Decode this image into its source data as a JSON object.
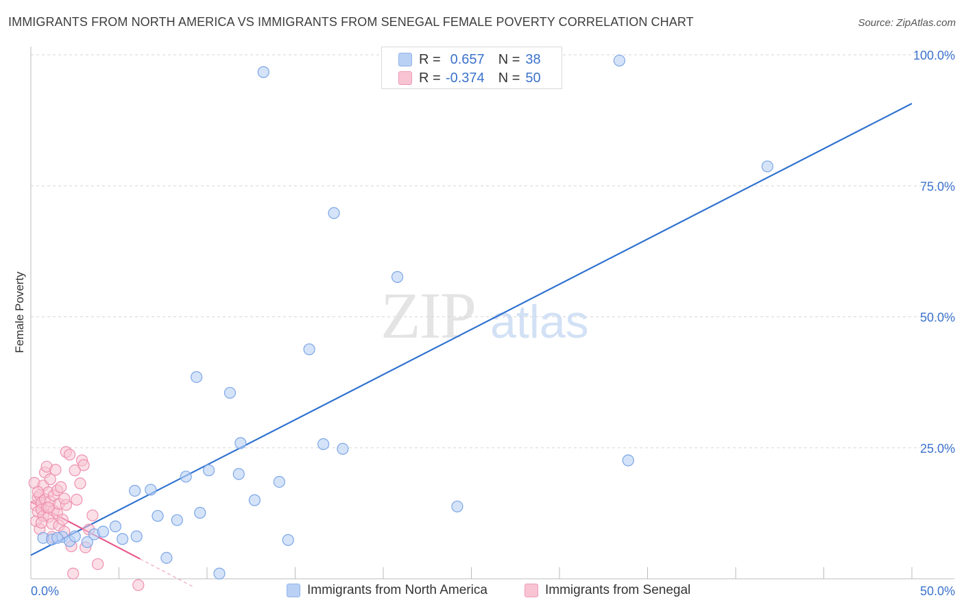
{
  "header": {
    "title": "IMMIGRANTS FROM NORTH AMERICA VS IMMIGRANTS FROM SENEGAL FEMALE POVERTY CORRELATION CHART",
    "source": "Source: ZipAtlas.com"
  },
  "watermark": {
    "zip": "ZIP",
    "atlas": "atlas"
  },
  "stats": {
    "r_label": "R =",
    "n_label": "N =",
    "series_1": {
      "r": "0.657",
      "n": "38"
    },
    "series_2": {
      "r": "-0.374",
      "n": "50"
    }
  },
  "colors": {
    "blue_fill": "#b9d1f5",
    "blue_stroke": "#7aa5e6",
    "blue_line": "#2f72d0",
    "pink_fill": "#f8c4d4",
    "pink_stroke": "#ee8fb0",
    "pink_line": "#e85a8a",
    "axis_label": "#3b72cc",
    "grid": "#d6d6d6"
  },
  "chart_data": {
    "type": "scatter",
    "title": "IMMIGRANTS FROM NORTH AMERICA VS IMMIGRANTS FROM SENEGAL FEMALE POVERTY CORRELATION CHART",
    "xlabel": "",
    "ylabel": "Female Poverty",
    "xlim": [
      0,
      50
    ],
    "ylim": [
      0,
      100
    ],
    "x_tick_labels": [
      "0.0%",
      "50.0%"
    ],
    "y_tick_labels": [
      "25.0%",
      "50.0%",
      "75.0%",
      "100.0%"
    ],
    "y_ticks": [
      25,
      50,
      75,
      100
    ],
    "x_minor_ticks": [
      5,
      10,
      15,
      20,
      25,
      30,
      35,
      40,
      45,
      50
    ],
    "series": [
      {
        "name": "Immigrants from North America",
        "color": "blue",
        "points": [
          [
            0.7,
            7.8
          ],
          [
            1.2,
            7.5
          ],
          [
            1.8,
            8.0
          ],
          [
            2.2,
            7.2
          ],
          [
            2.5,
            8.1
          ],
          [
            3.2,
            7.0
          ],
          [
            3.6,
            8.5
          ],
          [
            4.1,
            9.0
          ],
          [
            4.8,
            10.0
          ],
          [
            5.2,
            7.6
          ],
          [
            5.9,
            16.8
          ],
          [
            6.0,
            8.1
          ],
          [
            6.8,
            17.0
          ],
          [
            7.2,
            12.0
          ],
          [
            7.7,
            4.0
          ],
          [
            8.3,
            11.2
          ],
          [
            8.8,
            19.5
          ],
          [
            9.4,
            38.5
          ],
          [
            9.6,
            12.6
          ],
          [
            10.1,
            20.7
          ],
          [
            10.7,
            1.0
          ],
          [
            11.3,
            35.5
          ],
          [
            11.9,
            25.9
          ],
          [
            11.8,
            20.0
          ],
          [
            12.7,
            15.0
          ],
          [
            13.2,
            96.7
          ],
          [
            14.1,
            18.5
          ],
          [
            14.6,
            7.4
          ],
          [
            15.8,
            43.8
          ],
          [
            16.6,
            25.7
          ],
          [
            17.2,
            69.8
          ],
          [
            17.7,
            24.8
          ],
          [
            20.8,
            57.6
          ],
          [
            24.2,
            13.8
          ],
          [
            33.4,
            98.9
          ],
          [
            33.9,
            22.6
          ],
          [
            41.8,
            78.7
          ],
          [
            1.5,
            7.8
          ]
        ],
        "trend": {
          "x": [
            0,
            50
          ],
          "y": [
            4.5,
            90.7
          ]
        }
      },
      {
        "name": "Immigrants from Senegal",
        "color": "pink",
        "points": [
          [
            0.2,
            18.3
          ],
          [
            0.3,
            14.0
          ],
          [
            0.3,
            11.0
          ],
          [
            0.4,
            15.5
          ],
          [
            0.4,
            12.8
          ],
          [
            0.5,
            16.0
          ],
          [
            0.5,
            9.5
          ],
          [
            0.6,
            14.5
          ],
          [
            0.6,
            13.2
          ],
          [
            0.7,
            17.8
          ],
          [
            0.7,
            12.0
          ],
          [
            0.8,
            15.2
          ],
          [
            0.8,
            20.3
          ],
          [
            0.9,
            13.6
          ],
          [
            0.9,
            21.4
          ],
          [
            1.0,
            16.5
          ],
          [
            1.0,
            11.8
          ],
          [
            1.1,
            14.8
          ],
          [
            1.1,
            19.0
          ],
          [
            1.2,
            10.5
          ],
          [
            1.2,
            8.0
          ],
          [
            1.3,
            15.9
          ],
          [
            1.3,
            13.0
          ],
          [
            1.4,
            20.8
          ],
          [
            1.5,
            12.5
          ],
          [
            1.5,
            16.9
          ],
          [
            1.6,
            14.3
          ],
          [
            1.6,
            10.2
          ],
          [
            1.7,
            17.5
          ],
          [
            1.8,
            11.3
          ],
          [
            1.9,
            9.0
          ],
          [
            2.0,
            14.1
          ],
          [
            2.0,
            24.2
          ],
          [
            2.2,
            23.7
          ],
          [
            2.3,
            6.2
          ],
          [
            2.5,
            20.7
          ],
          [
            2.6,
            15.1
          ],
          [
            2.8,
            18.2
          ],
          [
            2.9,
            22.6
          ],
          [
            3.0,
            21.7
          ],
          [
            3.1,
            6.0
          ],
          [
            3.3,
            9.4
          ],
          [
            3.5,
            12.1
          ],
          [
            3.8,
            2.8
          ],
          [
            2.4,
            1.0
          ],
          [
            1.0,
            13.6
          ],
          [
            0.6,
            10.7
          ],
          [
            1.9,
            15.3
          ],
          [
            0.4,
            16.6
          ],
          [
            6.1,
            -1.2
          ]
        ],
        "trend": {
          "x": [
            0,
            6.2
          ],
          "y": [
            14.7,
            3.8
          ]
        },
        "trend_dashed": {
          "x": [
            6.2,
            9.2
          ],
          "y": [
            3.8,
            -1.5
          ]
        }
      }
    ]
  },
  "legend": {
    "item_1": "Immigrants from North America",
    "item_2": "Immigrants from Senegal"
  }
}
